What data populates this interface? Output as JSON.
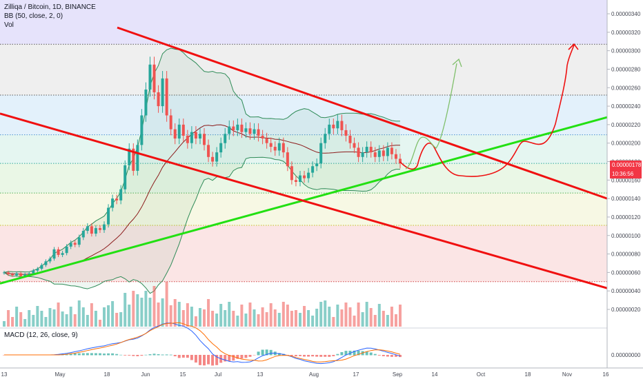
{
  "header": {
    "symbol_line": "Zilliqa / Bitcoin, 1D, BINANCE",
    "indicator_bb": "BB (50, close, 2, 0)",
    "indicator_vol": "Vol",
    "indicator_macd": "MACD (12, 26, close, 9)"
  },
  "price_badge": {
    "price": "0.00000178",
    "countdown": "10:36:56",
    "color": "#f23645"
  },
  "colors": {
    "up": "#26a69a",
    "down": "#ef5350",
    "trend_red": "#f01010",
    "trend_green": "#22e012",
    "bb_band": "#2e8b57",
    "bb_basis": "#8b1a1a",
    "projection_red": "#ee1111",
    "projection_green": "#7fbf6a",
    "macd_line": "#2962ff",
    "signal_line": "#ff6d00"
  },
  "chart_data": {
    "type": "candlestick",
    "y_ticks": [
      "0.00000340",
      "0.00000320",
      "0.00000300",
      "0.00000280",
      "0.00000260",
      "0.00000240",
      "0.00000220",
      "0.00000200",
      "0.00000180",
      "0.00000160",
      "0.00000140",
      "0.00000120",
      "0.00000100",
      "0.00000080",
      "0.00000060",
      "0.00000040",
      "0.00000020"
    ],
    "ylim": [
      0.0,
      3.5e-06
    ],
    "macd_y_tick": "0.00000000",
    "x_ticks": [
      "13",
      "May",
      "18",
      "Jun",
      "15",
      "Jul",
      "13",
      "Aug",
      "17",
      "Sep",
      "14",
      "Oct",
      "18",
      "Nov",
      "16"
    ],
    "horizontal_levels": [
      3.07e-06,
      2.52e-06,
      2.09e-06,
      1.78e-06,
      1.46e-06,
      1.11e-06,
      5e-07
    ],
    "candles_close": [
      6e-07,
      5.8e-07,
      5.7e-07,
      5.9e-07,
      5.6e-07,
      5.8e-07,
      5.9e-07,
      6.2e-07,
      6.4e-07,
      6.8e-07,
      7.2e-07,
      7.5e-07,
      8.5e-07,
      7.9e-07,
      8.1e-07,
      8.8e-07,
      9.2e-07,
      9e-07,
      9.8e-07,
      1.05e-06,
      1.1e-06,
      1.02e-06,
      1.08e-06,
      1.06e-06,
      1.12e-06,
      1.3e-06,
      1.4e-06,
      1.38e-06,
      1.5e-06,
      1.76e-06,
      1.94e-06,
      1.7e-06,
      1.98e-06,
      2.3e-06,
      2.58e-06,
      2.85e-06,
      2.55e-06,
      2.4e-06,
      2.7e-06,
      2.3e-06,
      2.15e-06,
      2.05e-06,
      2.2e-06,
      2.08e-06,
      2e-06,
      2.12e-06,
      2.05e-06,
      2.1e-06,
      1.98e-06,
      1.85e-06,
      1.8e-06,
      1.9e-06,
      2e-06,
      2.1e-06,
      2.18e-06,
      2.14e-06,
      2.2e-06,
      2.12e-06,
      2.16e-06,
      2.1e-06,
      2.15e-06,
      2.08e-06,
      2.05e-06,
      2e-06,
      1.96e-06,
      1.92e-06,
      2e-06,
      1.9e-06,
      1.75e-06,
      1.6e-06,
      1.58e-06,
      1.65e-06,
      1.62e-06,
      1.68e-06,
      1.75e-06,
      1.78e-06,
      2e-06,
      2.1e-06,
      2.2e-06,
      2.16e-06,
      2.24e-06,
      2.14e-06,
      2.08e-06,
      2e-06,
      1.95e-06,
      1.85e-06,
      1.9e-06,
      1.96e-06,
      1.9e-06,
      1.85e-06,
      1.92e-06,
      1.86e-06,
      1.95e-06,
      1.88e-06,
      1.83e-06,
      1.78e-06
    ],
    "green_trend_y_at_edges": [
      4.8e-07,
      2.28e-06
    ],
    "red_upper_trend": [
      [
        3.27e-06,
        1.93e-06
      ],
      [
        1.4e-06,
        1.4e-06
      ]
    ],
    "red_lower_trend": [
      [
        2.32e-06,
        1.05e-06
      ],
      [
        1.05e-06,
        4.3e-07
      ]
    ]
  }
}
